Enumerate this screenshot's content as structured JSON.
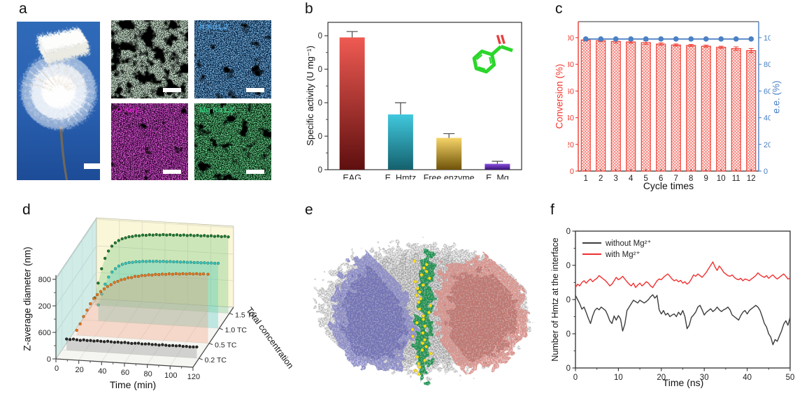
{
  "panels": {
    "a": {
      "label": "a",
      "photo": {
        "scale_bar": true
      },
      "sem": {
        "base": "#1c231c",
        "speckle": [
          "#95ad9c",
          "#79c47e"
        ],
        "scale_bar": true
      },
      "maps": [
        {
          "id": "n",
          "label": "N Kα1,2",
          "label_color": "#4f9fe0",
          "base": "#06203c",
          "speckle": [
            "#2a6fc0",
            "#66aaf0"
          ]
        },
        {
          "id": "o",
          "label": "O Kα1",
          "label_color": "#d81bc8",
          "base": "#250224",
          "speckle": [
            "#a512a0",
            "#e83ad8"
          ]
        },
        {
          "id": "mg",
          "label": "Mg Kα1,2",
          "label_color": "#35c97a",
          "base": "#05210c",
          "speckle": [
            "#1fa040",
            "#55d877"
          ]
        }
      ]
    },
    "b": {
      "label": "b"
    },
    "c": {
      "label": "c"
    },
    "d": {
      "label": "d"
    },
    "e": {
      "label": "e",
      "description": "Molecular dynamics snapshot: two enzyme subunits (purple and salmon surfaces) in a gray solvent/stick shell with Hmtz molecules (green) and Mg ions (yellow) at the interface"
    },
    "f": {
      "label": "f"
    }
  },
  "chart_data": [
    {
      "id": "b",
      "type": "bar",
      "ylabel": "Specific activity (U mg⁻¹)",
      "categories": [
        "EAG",
        "E_Hmtz",
        "Free enzyme",
        "E_Mg"
      ],
      "values": [
        79,
        33,
        19,
        3.5
      ],
      "errors": [
        3.5,
        7,
        2.5,
        1.5
      ],
      "ylim": [
        0,
        88
      ],
      "yticks": [
        0,
        20,
        40,
        60,
        80
      ],
      "bar_gradients": [
        [
          "#ef5a52",
          "#5e0f0f"
        ],
        [
          "#41c8de",
          "#14616d"
        ],
        [
          "#f6d468",
          "#6e5208"
        ],
        [
          "#8a4fe0",
          "#3a1277"
        ]
      ],
      "error_color": "#4a4a4a",
      "inset_molecule": {
        "name": "aryl ketone substrate",
        "carbon_color": "#2bd62b",
        "oxygen_color": "#e84040"
      }
    },
    {
      "id": "c",
      "type": "bar",
      "xlabel": "Cycle times",
      "ylabel_left": "Conversion (%)",
      "ylabel_right": "e.e. (%)",
      "categories": [
        1,
        2,
        3,
        4,
        5,
        6,
        7,
        8,
        9,
        10,
        11,
        12
      ],
      "ylim": [
        0,
        112
      ],
      "yticks": [
        0,
        20,
        40,
        60,
        80,
        100
      ],
      "series": [
        {
          "name": "Conversion (%)",
          "type": "bar",
          "color": "#f0392e",
          "values": [
            98.3,
            97.8,
            97.2,
            96.8,
            96.3,
            95.2,
            94.5,
            94.2,
            93.6,
            92.8,
            91.8,
            90.3
          ],
          "errors": [
            0.8,
            0.8,
            1.2,
            0.9,
            1.3,
            0.9,
            0.8,
            0.7,
            0.8,
            0.8,
            1.3,
            1.6
          ]
        },
        {
          "name": "e.e. (%)",
          "type": "line",
          "color": "#4a80c4",
          "values": [
            99,
            99,
            99,
            99,
            99,
            99,
            99,
            99,
            99,
            99,
            99,
            99
          ]
        }
      ]
    },
    {
      "id": "d",
      "type": "scatter",
      "xlabel": "Time (min)",
      "ylabel": "Z-average diameter (nm)",
      "zlabel": "Total concentration",
      "xticks": [
        0,
        20,
        40,
        60,
        80,
        100,
        120
      ],
      "yticks": [
        0,
        600,
        1200,
        1800
      ],
      "zticks": [
        "0.2 TC",
        "0.5 TC",
        "1.0 TC",
        "1.5 TC"
      ],
      "xlim": [
        0,
        120
      ],
      "ylim": [
        0,
        1850
      ],
      "series": [
        {
          "name": "0.2 TC",
          "color": "#2b2b2b",
          "edge": "#000000",
          "curtain": "rgba(125,125,125,0.30)",
          "points": [
            [
              4,
              252
            ],
            [
              7,
              246
            ],
            [
              10,
              259
            ],
            [
              13,
              249
            ],
            [
              16,
              241
            ],
            [
              19,
              257
            ],
            [
              22,
              247
            ],
            [
              25,
              252
            ],
            [
              28,
              244
            ],
            [
              31,
              256
            ],
            [
              34,
              249
            ],
            [
              37,
              245
            ],
            [
              40,
              259
            ],
            [
              43,
              251
            ],
            [
              46,
              245
            ],
            [
              49,
              254
            ],
            [
              52,
              247
            ],
            [
              55,
              257
            ],
            [
              58,
              249
            ],
            [
              61,
              243
            ],
            [
              64,
              251
            ],
            [
              67,
              257
            ],
            [
              70,
              245
            ],
            [
              73,
              249
            ],
            [
              76,
              255
            ],
            [
              79,
              247
            ],
            [
              82,
              251
            ],
            [
              85,
              243
            ],
            [
              88,
              257
            ],
            [
              91,
              249
            ],
            [
              94,
              245
            ],
            [
              97,
              253
            ],
            [
              100,
              249
            ],
            [
              103,
              257
            ],
            [
              106,
              247
            ],
            [
              109,
              251
            ],
            [
              112,
              245
            ],
            [
              115,
              249
            ],
            [
              118,
              253
            ]
          ]
        },
        {
          "name": "0.5 TC",
          "color": "#e8761f",
          "edge": "#8a4510",
          "curtain": "rgba(244,150,110,0.30)",
          "points": [
            [
              4,
              110
            ],
            [
              7,
              260
            ],
            [
              10,
              430
            ],
            [
              13,
              580
            ],
            [
              16,
              730
            ],
            [
              19,
              855
            ],
            [
              22,
              945
            ],
            [
              25,
              1020
            ],
            [
              28,
              1085
            ],
            [
              31,
              1145
            ],
            [
              34,
              1190
            ],
            [
              37,
              1245
            ],
            [
              40,
              1275
            ],
            [
              43,
              1315
            ],
            [
              46,
              1335
            ],
            [
              49,
              1370
            ],
            [
              52,
              1380
            ],
            [
              55,
              1410
            ],
            [
              58,
              1415
            ],
            [
              61,
              1440
            ],
            [
              64,
              1445
            ],
            [
              67,
              1465
            ],
            [
              70,
              1465
            ],
            [
              73,
              1485
            ],
            [
              76,
              1485
            ],
            [
              79,
              1500
            ],
            [
              82,
              1500
            ],
            [
              85,
              1515
            ],
            [
              88,
              1512
            ],
            [
              91,
              1528
            ],
            [
              94,
              1525
            ],
            [
              97,
              1538
            ],
            [
              100,
              1535
            ],
            [
              103,
              1548
            ],
            [
              106,
              1545
            ],
            [
              109,
              1556
            ],
            [
              112,
              1552
            ],
            [
              115,
              1562
            ],
            [
              119,
              1560
            ]
          ]
        },
        {
          "name": "1.0 TC",
          "color": "#38c6bd",
          "edge": "#0e6e68",
          "curtain": "rgba(90,205,195,0.35)",
          "points": [
            [
              14,
              360
            ],
            [
              17,
              610
            ],
            [
              20,
              840
            ],
            [
              23,
              1005
            ],
            [
              26,
              1125
            ],
            [
              29,
              1205
            ],
            [
              32,
              1268
            ],
            [
              35,
              1312
            ],
            [
              38,
              1338
            ],
            [
              41,
              1362
            ],
            [
              44,
              1372
            ],
            [
              47,
              1390
            ],
            [
              50,
              1395
            ],
            [
              53,
              1408
            ],
            [
              56,
              1410
            ],
            [
              59,
              1420
            ],
            [
              62,
              1421
            ],
            [
              65,
              1429
            ],
            [
              68,
              1428
            ],
            [
              71,
              1436
            ],
            [
              74,
              1434
            ],
            [
              77,
              1442
            ],
            [
              80,
              1440
            ],
            [
              83,
              1446
            ],
            [
              86,
              1444
            ],
            [
              89,
              1450
            ],
            [
              92,
              1448
            ],
            [
              95,
              1454
            ],
            [
              98,
              1452
            ],
            [
              101,
              1458
            ],
            [
              104,
              1456
            ],
            [
              107,
              1462
            ],
            [
              110,
              1460
            ],
            [
              113,
              1466
            ],
            [
              116,
              1464
            ],
            [
              119,
              1468
            ]
          ]
        },
        {
          "name": "1.5 TC",
          "color": "#1e7d32",
          "edge": "#0c3a16",
          "curtain": "rgba(110,195,120,0.32)",
          "points": [
            [
              2,
              160
            ],
            [
              5,
              500
            ],
            [
              8,
              830
            ],
            [
              11,
              1070
            ],
            [
              14,
              1240
            ],
            [
              17,
              1355
            ],
            [
              20,
              1435
            ],
            [
              23,
              1492
            ],
            [
              26,
              1535
            ],
            [
              29,
              1562
            ],
            [
              32,
              1590
            ],
            [
              35,
              1602
            ],
            [
              38,
              1625
            ],
            [
              41,
              1628
            ],
            [
              44,
              1648
            ],
            [
              47,
              1648
            ],
            [
              50,
              1665
            ],
            [
              53,
              1662
            ],
            [
              56,
              1678
            ],
            [
              59,
              1672
            ],
            [
              62,
              1688
            ],
            [
              65,
              1682
            ],
            [
              68,
              1696
            ],
            [
              71,
              1688
            ],
            [
              74,
              1702
            ],
            [
              77,
              1694
            ],
            [
              80,
              1708
            ],
            [
              83,
              1700
            ],
            [
              86,
              1714
            ],
            [
              89,
              1705
            ],
            [
              92,
              1719
            ],
            [
              95,
              1710
            ],
            [
              98,
              1723
            ],
            [
              101,
              1714
            ],
            [
              104,
              1727
            ],
            [
              107,
              1718
            ],
            [
              110,
              1731
            ],
            [
              113,
              1722
            ],
            [
              116,
              1735
            ],
            [
              119,
              1726
            ]
          ]
        }
      ]
    },
    {
      "id": "f",
      "type": "line",
      "xlabel": "Time (ns)",
      "ylabel": "Number of Hmtz at the interface",
      "xlim": [
        0,
        50
      ],
      "ylim": [
        300,
        700
      ],
      "xticks": [
        0,
        10,
        20,
        30,
        40,
        50
      ],
      "yticks": [
        300,
        400,
        500,
        600,
        700
      ],
      "legend_position": "top-left",
      "series": [
        {
          "name": "without Mg²⁺",
          "color": "#3d3d3d",
          "t_start": 0,
          "t_step": 0.5,
          "values": [
            512,
            500,
            488,
            472,
            478,
            462,
            445,
            430,
            452,
            468,
            475,
            470,
            478,
            473,
            468,
            455,
            438,
            430,
            452,
            440,
            453,
            443,
            408,
            428,
            468,
            478,
            488,
            498,
            494,
            490,
            498,
            494,
            490,
            494,
            500,
            508,
            514,
            504,
            512,
            470,
            458,
            468,
            455,
            460,
            450,
            455,
            458,
            450,
            463,
            455,
            468,
            450,
            415,
            425,
            448,
            455,
            463,
            478,
            483,
            470,
            455,
            463,
            468,
            473,
            465,
            470,
            478,
            470,
            465,
            470,
            473,
            478,
            470,
            455,
            450,
            445,
            440,
            453,
            463,
            468,
            458,
            468,
            473,
            478,
            483,
            478,
            468,
            450,
            430,
            420,
            400,
            390,
            368,
            383,
            378,
            393,
            408,
            428,
            438,
            425,
            448
          ]
        },
        {
          "name": "with Mg²⁺",
          "color": "#f03030",
          "t_start": 0,
          "t_step": 0.5,
          "values": [
            535,
            545,
            540,
            550,
            555,
            548,
            555,
            560,
            552,
            558,
            562,
            570,
            565,
            560,
            555,
            548,
            540,
            545,
            555,
            565,
            558,
            562,
            568,
            560,
            552,
            545,
            540,
            548,
            535,
            542,
            548,
            540,
            545,
            552,
            548,
            540,
            535,
            545,
            555,
            560,
            558,
            565,
            570,
            575,
            568,
            560,
            555,
            558,
            552,
            556,
            548,
            552,
            545,
            550,
            560,
            572,
            568,
            575,
            570,
            565,
            572,
            580,
            590,
            600,
            610,
            595,
            585,
            598,
            590,
            580,
            575,
            570,
            568,
            572,
            565,
            560,
            558,
            562,
            555,
            560,
            558,
            555,
            560,
            565,
            570,
            578,
            572,
            568,
            565,
            570,
            562,
            568,
            572,
            565,
            560,
            565,
            570,
            575,
            568,
            560,
            562
          ]
        }
      ]
    }
  ]
}
